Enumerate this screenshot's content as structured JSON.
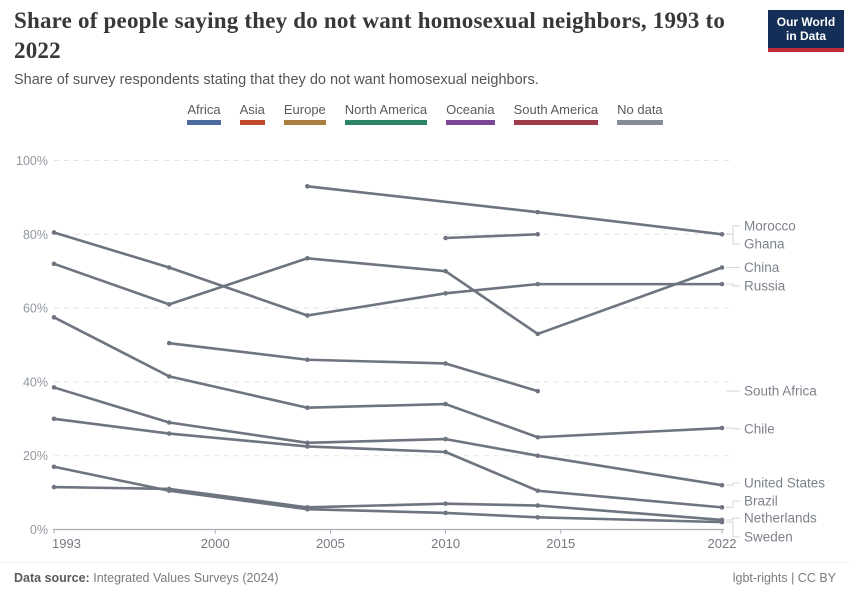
{
  "header": {
    "title": "Share of people saying they do not want homosexual neighbors, 1993 to 2022",
    "subtitle": "Share of survey respondents stating that they do not want homosexual neighbors.",
    "logo": {
      "line1": "Our World",
      "line2": "in Data",
      "bg": "#152E57",
      "accent": "#BF2B36"
    }
  },
  "legend": {
    "items": [
      {
        "label": "Africa",
        "color": "#4C6A9C"
      },
      {
        "label": "Asia",
        "color": "#C0492B"
      },
      {
        "label": "Europe",
        "color": "#A97E3F"
      },
      {
        "label": "North America",
        "color": "#2C8465"
      },
      {
        "label": "Oceania",
        "color": "#7D4695"
      },
      {
        "label": "South America",
        "color": "#9E3C49"
      },
      {
        "label": "No data",
        "color": "#848C96"
      }
    ]
  },
  "chart_data": {
    "type": "line",
    "title": "Share of people saying they do not want homosexual neighbors, 1993 to 2022",
    "xlabel": "",
    "ylabel": "",
    "xlim": [
      1993,
      2022
    ],
    "ylim": [
      0,
      100
    ],
    "x_ticks": [
      1993,
      2000,
      2005,
      2010,
      2015,
      2022
    ],
    "y_ticks": [
      0,
      20,
      40,
      60,
      80,
      100
    ],
    "y_tick_suffix": "%",
    "grid": "horizontal-dashed",
    "line_color": "#6e7480",
    "leader_color": "#d9d9d9",
    "legend_position": "right-of-line-ends",
    "series": [
      {
        "name": "Morocco",
        "label_pct": 82.3,
        "points": [
          [
            2004,
            93
          ],
          [
            2014,
            86
          ],
          [
            2022,
            80
          ]
        ]
      },
      {
        "name": "Ghana",
        "label_pct": 77.4,
        "points": [
          [
            2010,
            79
          ],
          [
            2014,
            80
          ]
        ]
      },
      {
        "name": "China",
        "label_pct": 71.0,
        "points": [
          [
            1993,
            72
          ],
          [
            1998,
            61
          ],
          [
            2004,
            73.5
          ],
          [
            2010,
            70
          ],
          [
            2014,
            53
          ],
          [
            2022,
            71
          ]
        ]
      },
      {
        "name": "Russia",
        "label_pct": 66.0,
        "points": [
          [
            1993,
            80.5
          ],
          [
            1998,
            71
          ],
          [
            2004,
            58
          ],
          [
            2010,
            64
          ],
          [
            2014,
            66.5
          ],
          [
            2022,
            66.5
          ]
        ]
      },
      {
        "name": "South Africa",
        "label_pct": 37.5,
        "points": [
          [
            1998,
            50.5
          ],
          [
            2004,
            46
          ],
          [
            2010,
            45
          ],
          [
            2014,
            37.5
          ]
        ]
      },
      {
        "name": "Chile",
        "label_pct": 27.3,
        "points": [
          [
            1993,
            57.5
          ],
          [
            1998,
            41.5
          ],
          [
            2004,
            33
          ],
          [
            2010,
            34
          ],
          [
            2014,
            25
          ],
          [
            2022,
            27.5
          ]
        ]
      },
      {
        "name": "United States",
        "label_pct": 12.6,
        "points": [
          [
            1993,
            38.5
          ],
          [
            1998,
            29
          ],
          [
            2004,
            23.5
          ],
          [
            2010,
            24.5
          ],
          [
            2014,
            20
          ],
          [
            2022,
            12
          ]
        ]
      },
      {
        "name": "Brazil",
        "label_pct": 7.7,
        "points": [
          [
            1993,
            30
          ],
          [
            1998,
            26
          ],
          [
            2004,
            22.5
          ],
          [
            2010,
            21
          ],
          [
            2014,
            10.5
          ],
          [
            2022,
            6
          ]
        ]
      },
      {
        "name": "Netherlands",
        "label_pct": 3.1,
        "points": [
          [
            1993,
            11.5
          ],
          [
            1998,
            11
          ],
          [
            2004,
            6
          ],
          [
            2010,
            7
          ],
          [
            2014,
            6.5
          ],
          [
            2022,
            2.6
          ]
        ]
      },
      {
        "name": "Sweden",
        "label_pct": -2.0,
        "points": [
          [
            1993,
            17
          ],
          [
            1998,
            10.5
          ],
          [
            2004,
            5.5
          ],
          [
            2010,
            4.5
          ],
          [
            2014,
            3.3
          ],
          [
            2022,
            2
          ]
        ]
      }
    ]
  },
  "footer": {
    "source_label": "Data source:",
    "source": "Integrated Values Surveys (2024)",
    "right": "lgbt-rights | CC BY"
  }
}
